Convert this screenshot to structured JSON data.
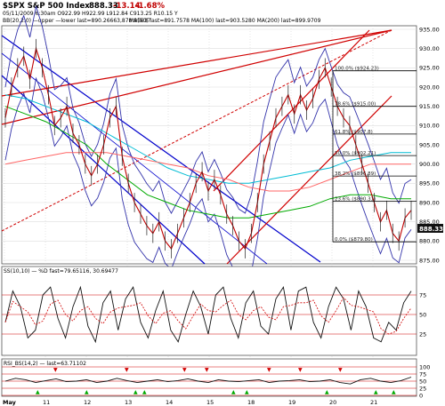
{
  "header": {
    "title": "$SPX S&P 500 Index",
    "last": "888.33",
    "change": "-13.14",
    "change_pct": "-1.68%",
    "ohlc_line": "05/11/2009  6:30am O922.99 H922.99 L912.84 C913.25 R10.15 Y",
    "bb_line": "BB(20,2.0) —upper —lower last=890.26663,878.95637",
    "ma_line": "MA(50)  last=891.7578  MA(100)  last=903.5280  MA(200)  last=899.9709"
  },
  "colors": {
    "price": "#c00000",
    "bollinger": "#3333aa",
    "ma50": "#00aa00",
    "ma100": "#00bcd4",
    "ma200": "#ff6666",
    "down_channel": "#0000cc",
    "up_channel": "#d00000",
    "fib": "#000000"
  },
  "chart_data": [
    {
      "type": "line",
      "title": "$SPX S&P 500 Index",
      "yaxis_ticks": [
        "935.00",
        "930.00",
        "925.00",
        "920.00",
        "915.00",
        "910.00",
        "905.00",
        "900.00",
        "895.00",
        "890.00",
        "885.00",
        "880.00",
        "875.00"
      ],
      "ylim": [
        875,
        935
      ],
      "x_ticks": [
        "May",
        "11",
        "12",
        "13",
        "14",
        "15",
        "18",
        "19",
        "20",
        "21"
      ],
      "last_price_label": "888.33",
      "series": [
        {
          "values": [
            912,
            920,
            925,
            928,
            922,
            930,
            925,
            918,
            910,
            912,
            915,
            908,
            905,
            900,
            897,
            900,
            905,
            912,
            915,
            902,
            895,
            890,
            887,
            884,
            882,
            885,
            880,
            878,
            882,
            886,
            890,
            895,
            898,
            893,
            896,
            892,
            887,
            884,
            880,
            878,
            882,
            890,
            900,
            906,
            912,
            915,
            918,
            913,
            918,
            914,
            917,
            922,
            925,
            920,
            915,
            912,
            910,
            905,
            900,
            895,
            890,
            885,
            888,
            882,
            880,
            886,
            888
          ]
        },
        {
          "name": "MA(50)",
          "values": [
            915,
            913,
            911,
            908,
            905,
            900,
            896,
            892,
            890,
            888,
            887,
            886,
            886,
            887,
            888,
            889,
            891,
            892,
            892,
            891,
            891
          ]
        },
        {
          "name": "MA(100)",
          "values": [
            918,
            917,
            915,
            913,
            911,
            908,
            905,
            902,
            899,
            897,
            896,
            895,
            895,
            896,
            897,
            898,
            899,
            901,
            902,
            903,
            903
          ]
        },
        {
          "name": "MA(200)",
          "values": [
            900,
            901,
            902,
            903,
            903,
            903,
            902,
            901,
            900,
            899,
            897,
            896,
            894,
            893,
            893,
            894,
            896,
            898,
            900,
            900,
            900
          ]
        }
      ],
      "fib_levels": [
        {
          "label": "100.0% ($924.23)",
          "value": 924.23
        },
        {
          "label": "78.6% ($915.00)",
          "value": 915.0
        },
        {
          "label": "61.8% ($907.8)",
          "value": 907.8
        },
        {
          "label": "50.0% ($902.21)",
          "value": 902.21
        },
        {
          "label": "38.2% ($896.89)",
          "value": 896.89
        },
        {
          "label": "23.6% ($890.31)",
          "value": 890.31
        },
        {
          "label": "0.0% ($879.80)",
          "value": 879.8
        }
      ]
    },
    {
      "type": "line",
      "title": "SS(10,10) — %D  fast=79.65116, 30.69477",
      "ylim": [
        0,
        100
      ],
      "yaxis_ticks": [
        "75",
        "50",
        "25"
      ],
      "series": [
        {
          "name": "%D",
          "values": [
            40,
            80,
            60,
            20,
            30,
            75,
            85,
            45,
            20,
            60,
            85,
            35,
            15,
            65,
            80,
            30,
            70,
            85,
            40,
            20,
            55,
            80,
            30,
            15,
            50,
            80,
            60,
            25,
            75,
            85,
            45,
            20,
            65,
            80,
            35,
            25,
            70,
            85,
            30,
            80,
            85,
            40,
            20,
            60,
            85,
            70,
            30,
            80,
            60,
            20,
            15,
            40,
            30,
            65,
            80
          ]
        }
      ]
    },
    {
      "type": "line",
      "title": "RSI_BS(14,2) — last=63.71102",
      "ylim": [
        0,
        100
      ],
      "yaxis_ticks": [
        "100",
        "75",
        "50",
        "25",
        "0"
      ],
      "series": [
        {
          "values": [
            50,
            60,
            55,
            45,
            52,
            58,
            48,
            50,
            55,
            45,
            50,
            60,
            52,
            45,
            50,
            55,
            48,
            52,
            58,
            50,
            45,
            55,
            50,
            48,
            52,
            55,
            45,
            50,
            52,
            55,
            48,
            50,
            55,
            45,
            40,
            55,
            60,
            50,
            45,
            52,
            64
          ]
        }
      ]
    }
  ]
}
